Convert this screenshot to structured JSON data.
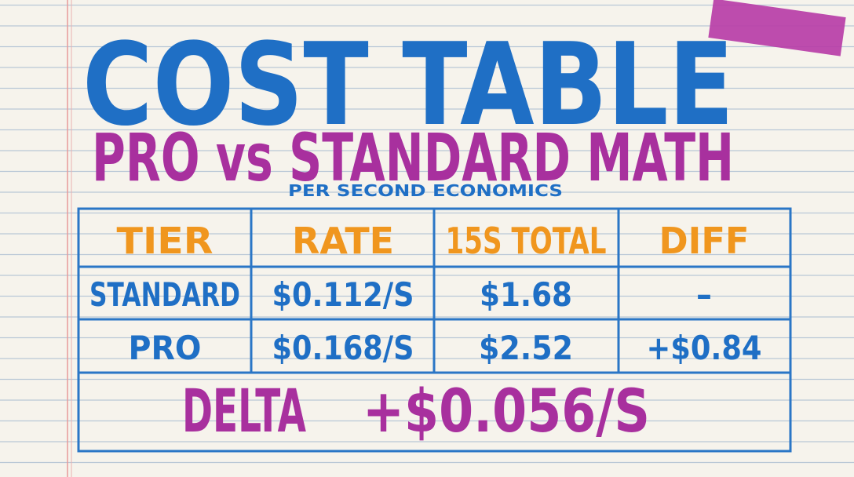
{
  "title": "COST TABLE",
  "subtitle": "PRO vs STANDARD MATH",
  "tagline": "PER SECOND ECONOMICS",
  "table": {
    "header": [
      "TIER",
      "RATE",
      "15S TOTAL",
      "DIFF"
    ],
    "rows": [
      [
        "STANDARD",
        "$0.112/S",
        "$1.68",
        "–"
      ],
      [
        "PRO",
        "$0.168/S",
        "$2.52",
        "+$0.84"
      ]
    ],
    "footer": {
      "label": "DELTA",
      "value": "+$0.056/S"
    }
  }
}
